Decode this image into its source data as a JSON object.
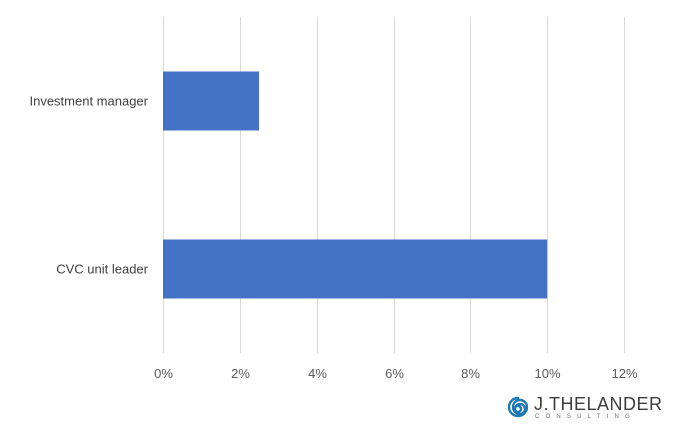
{
  "chart_data": {
    "type": "bar",
    "orientation": "horizontal",
    "categories": [
      "Investment manager",
      "CVC unit leader"
    ],
    "values": [
      0.025,
      0.1
    ],
    "value_format": "percent",
    "xlim": [
      0,
      0.12
    ],
    "xticks": [
      0,
      0.02,
      0.04,
      0.06,
      0.08,
      0.1,
      0.12
    ],
    "xtick_labels": [
      "0%",
      "2%",
      "4%",
      "6%",
      "8%",
      "10%",
      "12%"
    ],
    "title": "",
    "xlabel": "",
    "ylabel": "",
    "grid": true,
    "legend": "none",
    "bar_color": "#4472c4"
  },
  "logo": {
    "name": "J.THELANDER",
    "sub": "CONSULTING",
    "icon": "spiral-icon",
    "color": "#1f78b4"
  }
}
